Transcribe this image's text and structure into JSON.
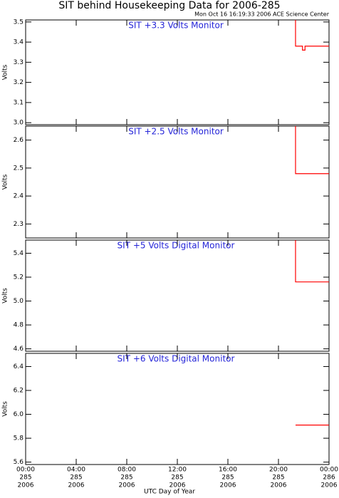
{
  "header": {
    "title": "SIT behind Housekeeping Data for 2006-285",
    "subtitle": "Mon Oct 16 16:19:33 2006 ACE Science Center"
  },
  "x_axis": {
    "label": "UTC Day of Year",
    "xlim": [
      0,
      24
    ],
    "xticks": [
      {
        "value": 0,
        "label": [
          "00:00",
          "285",
          "2006"
        ]
      },
      {
        "value": 4,
        "label": [
          "04:00",
          "285",
          "2006"
        ]
      },
      {
        "value": 8,
        "label": [
          "08:00",
          "285",
          "2006"
        ]
      },
      {
        "value": 12,
        "label": [
          "12:00",
          "285",
          "2006"
        ]
      },
      {
        "value": 16,
        "label": [
          "16:00",
          "285",
          "2006"
        ]
      },
      {
        "value": 20,
        "label": [
          "20:00",
          "285",
          "2006"
        ]
      },
      {
        "value": 24,
        "label": [
          "00:00",
          "286",
          "2006"
        ]
      }
    ]
  },
  "chart_data": [
    {
      "type": "line",
      "title": "SIT +3.3 Volts Monitor",
      "title_color": "#2424d8",
      "ylabel": "Volts",
      "ylim": [
        2.99,
        3.51
      ],
      "yticks": [
        {
          "value": 3,
          "label": "3.0"
        },
        3.1,
        3.2,
        3.3,
        3.4,
        3.5
      ],
      "series": [
        {
          "color": "#ff0000",
          "x": [
            21.35,
            21.35,
            21.9,
            21.9,
            22.1,
            22.1,
            24
          ],
          "values": [
            3.51,
            3.38,
            3.38,
            3.36,
            3.36,
            3.38,
            3.38
          ]
        }
      ]
    },
    {
      "type": "line",
      "title": "SIT +2.5 Volts Monitor",
      "title_color": "#2424d8",
      "ylabel": "Volts",
      "ylim": [
        2.25,
        2.65
      ],
      "yticks": [
        2.3,
        2.4,
        2.5,
        2.6
      ],
      "series": [
        {
          "color": "#ff0000",
          "x": [
            21.35,
            21.35,
            24
          ],
          "values": [
            2.65,
            2.48,
            2.48
          ]
        }
      ]
    },
    {
      "type": "line",
      "title": "SIT +5 Volts Digital Monitor",
      "title_color": "#2424d8",
      "ylabel": "Volts",
      "ylim": [
        4.58,
        5.51
      ],
      "yticks": [
        4.6,
        4.8,
        {
          "value": 5,
          "label": "5.0"
        },
        5.2,
        5.4
      ],
      "series": [
        {
          "color": "#ff0000",
          "x": [
            21.35,
            21.35,
            24
          ],
          "values": [
            5.51,
            5.16,
            5.16
          ]
        }
      ]
    },
    {
      "type": "line",
      "title": "SIT +6 Volts Digital Monitor",
      "title_color": "#2424d8",
      "ylabel": "Volts",
      "ylim": [
        5.58,
        6.51
      ],
      "yticks": [
        5.6,
        5.8,
        {
          "value": 6,
          "label": "6.0"
        },
        6.2,
        6.4
      ],
      "series": [
        {
          "color": "#ff0000",
          "x": [
            21.35,
            21.35,
            24
          ],
          "values": [
            5.91,
            5.91,
            5.91
          ]
        }
      ]
    }
  ]
}
